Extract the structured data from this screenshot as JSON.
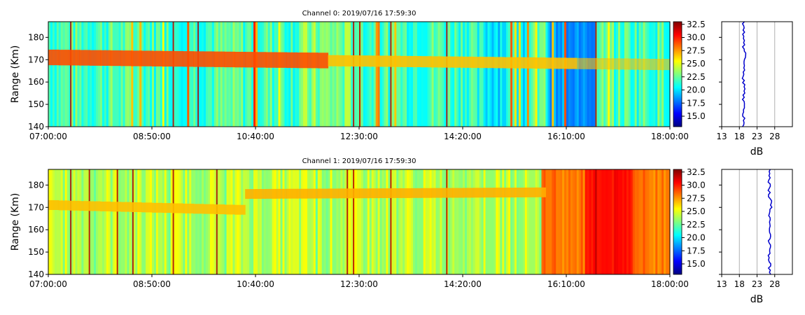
{
  "chart_data": [
    {
      "type": "heatmap",
      "title": "Channel 0: 2019/07/16 17:59:30",
      "ylabel": "Range (Km)",
      "xlabel": "",
      "x_ticks": [
        "07:00:00",
        "08:50:00",
        "10:40:00",
        "12:30:00",
        "14:20:00",
        "16:10:00",
        "18:00:00"
      ],
      "y_ticks": [
        "140",
        "150",
        "160",
        "170",
        "180"
      ],
      "ylim": [
        140,
        187
      ],
      "colorbar": {
        "ticks": [
          "15.0",
          "17.5",
          "20.0",
          "22.5",
          "25.0",
          "27.5",
          "30.0",
          "32.5"
        ],
        "range": [
          13,
          33
        ],
        "colormap": "jet"
      },
      "profile": {
        "xlabel": "dB",
        "x_ticks": [
          "13",
          "18",
          "23",
          "28"
        ],
        "xlim": [
          13,
          33
        ],
        "value_db": 19.2,
        "color": "#0000cc"
      }
    },
    {
      "type": "heatmap",
      "title": "Channel 1: 2019/07/16 17:59:30",
      "ylabel": "Range (Km)",
      "xlabel": "",
      "x_ticks": [
        "07:00:00",
        "08:50:00",
        "10:40:00",
        "12:30:00",
        "14:20:00",
        "16:10:00",
        "18:00:00"
      ],
      "y_ticks": [
        "140",
        "150",
        "160",
        "170",
        "180"
      ],
      "ylim": [
        140,
        187
      ],
      "colorbar": {
        "ticks": [
          "15.0",
          "17.5",
          "20.0",
          "22.5",
          "25.0",
          "27.5",
          "30.0",
          "32.5"
        ],
        "range": [
          13,
          33
        ],
        "colormap": "jet"
      },
      "profile": {
        "xlabel": "dB",
        "x_ticks": [
          "13",
          "18",
          "23",
          "28"
        ],
        "xlim": [
          13,
          33
        ],
        "value_db": 26.5,
        "color": "#0000cc"
      }
    }
  ]
}
